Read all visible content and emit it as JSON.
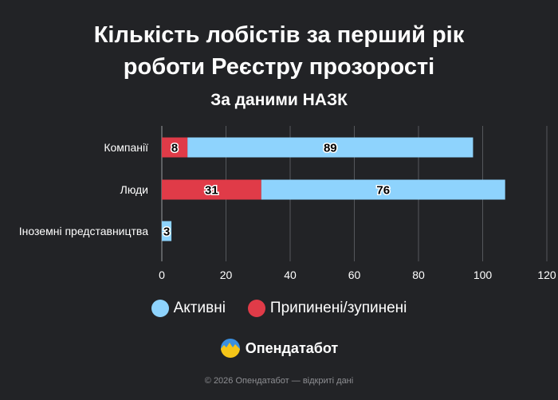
{
  "header": {
    "title_line1": "Кількість лобістів за перший рік",
    "title_line2": "роботи Реєстру прозорості",
    "subtitle": "За даними НАЗК"
  },
  "chart_data": {
    "type": "bar",
    "orientation": "horizontal",
    "stacked": true,
    "title": "Кількість лобістів за перший рік роботи Реєстру прозорості",
    "subtitle": "За даними НАЗК",
    "categories": [
      "Компанії",
      "Люди",
      "Іноземні представництва"
    ],
    "series": [
      {
        "name": "Припинені/зупинені",
        "color": "#e03b48",
        "values": [
          8,
          31,
          0
        ]
      },
      {
        "name": "Активні",
        "color": "#8ed3fd",
        "values": [
          89,
          76,
          3
        ]
      }
    ],
    "xlim": [
      0,
      120
    ],
    "xticks": [
      0,
      20,
      40,
      60,
      80,
      100,
      120
    ],
    "grid": true,
    "legend_position": "bottom"
  },
  "legend": {
    "items": [
      {
        "label": "Активні",
        "color": "#8ed3fd"
      },
      {
        "label": "Припинені/зупинені",
        "color": "#e03b48"
      }
    ]
  },
  "brand": {
    "name": "Опендатабот",
    "logo_icon": "opendatabot-logo-icon"
  },
  "footer": {
    "text": "© 2026 Опендатабот — відкриті дані"
  }
}
